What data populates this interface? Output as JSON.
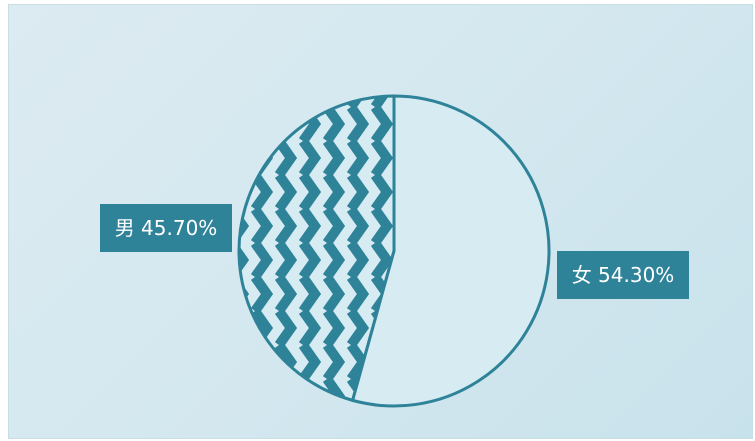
{
  "chart_data": {
    "type": "pie",
    "categories": [
      "男",
      "女"
    ],
    "values": [
      45.7,
      54.3
    ],
    "data_labels": [
      "男 45.70%",
      "女 54.30%"
    ],
    "title": "",
    "legend": "none",
    "colors": {
      "accent": "#2e8399",
      "light_fill": "#d6ebf2",
      "background": "#d6e9f0",
      "label_bg": "#2e8399",
      "label_text": "#ffffff"
    }
  }
}
